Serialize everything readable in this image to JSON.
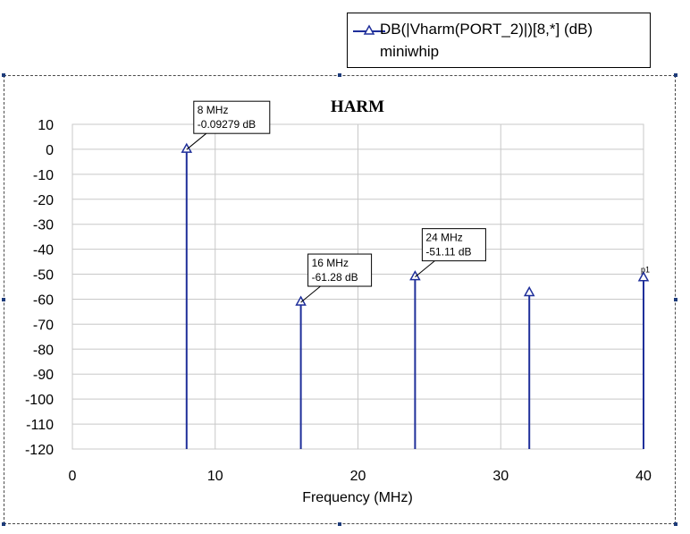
{
  "legend": {
    "series_label": "DB(|Vharm(PORT_2)|)[8,*] (dB)",
    "subtitle": "miniwhip"
  },
  "colors": {
    "series": "#1f2f9a",
    "grid": "#c8c8c8",
    "axis": "#000000"
  },
  "chart_data": {
    "type": "bar",
    "title": "HARM",
    "xlabel": "Frequency (MHz)",
    "ylabel": "",
    "xlim": [
      0,
      40
    ],
    "ylim": [
      -120,
      10
    ],
    "x_ticks": [
      0,
      10,
      20,
      30,
      40
    ],
    "y_ticks": [
      10,
      0,
      -10,
      -20,
      -30,
      -40,
      -50,
      -60,
      -70,
      -80,
      -90,
      -100,
      -110,
      -120
    ],
    "grid": true,
    "series": [
      {
        "name": "DB(|Vharm(PORT_2)|)[8,*] (dB)",
        "x": [
          8,
          16,
          24,
          32,
          40
        ],
        "values": [
          -0.09279,
          -61.28,
          -51.11,
          -57.5,
          -51.5
        ],
        "marker": "triangle"
      }
    ],
    "annotations": [
      {
        "x": 8,
        "y": -0.09279,
        "line1": "8 MHz",
        "line2": "-0.09279 dB"
      },
      {
        "x": 16,
        "y": -61.28,
        "line1": "16 MHz",
        "line2": "-61.28 dB"
      },
      {
        "x": 24,
        "y": -51.11,
        "line1": "24 MHz",
        "line2": "-51.11 dB"
      }
    ],
    "end_marker_text": "p1"
  }
}
